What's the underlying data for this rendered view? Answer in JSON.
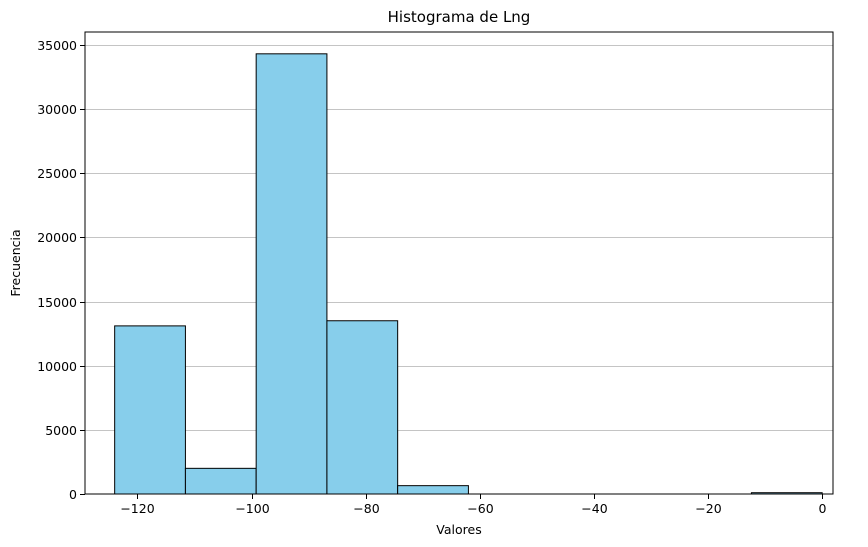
{
  "chart_data": {
    "type": "bar",
    "title": "Histograma de Lng",
    "xlabel": "Valores",
    "ylabel": "Frecuencia",
    "xlim": [
      -129.2,
      1.9
    ],
    "ylim": [
      0,
      36000
    ],
    "x_ticks": [
      -120,
      -100,
      -80,
      -60,
      -40,
      -20,
      0
    ],
    "x_tick_labels": [
      "−120",
      "−100",
      "−80",
      "−60",
      "−40",
      "−20",
      "0"
    ],
    "y_ticks": [
      0,
      5000,
      10000,
      15000,
      20000,
      25000,
      30000,
      35000
    ],
    "y_tick_labels": [
      "0",
      "5000",
      "10000",
      "15000",
      "20000",
      "25000",
      "30000",
      "35000"
    ],
    "bins": [
      {
        "x0": -124.0,
        "x1": -111.6,
        "value": 13100
      },
      {
        "x0": -111.6,
        "x1": -99.2,
        "value": 2000
      },
      {
        "x0": -99.2,
        "x1": -86.8,
        "value": 34300
      },
      {
        "x0": -86.8,
        "x1": -74.4,
        "value": 13500
      },
      {
        "x0": -74.4,
        "x1": -62.0,
        "value": 650
      },
      {
        "x0": -62.0,
        "x1": -49.6,
        "value": 0
      },
      {
        "x0": -49.6,
        "x1": -37.2,
        "value": 0
      },
      {
        "x0": -37.2,
        "x1": -24.8,
        "value": 0
      },
      {
        "x0": -24.8,
        "x1": -12.4,
        "value": 0
      },
      {
        "x0": -12.4,
        "x1": 0.0,
        "value": 100
      }
    ],
    "grid": "y-only",
    "bar_color": "#87CEEB",
    "edge_color": "#000000",
    "grid_color": "#b0b0b0"
  }
}
